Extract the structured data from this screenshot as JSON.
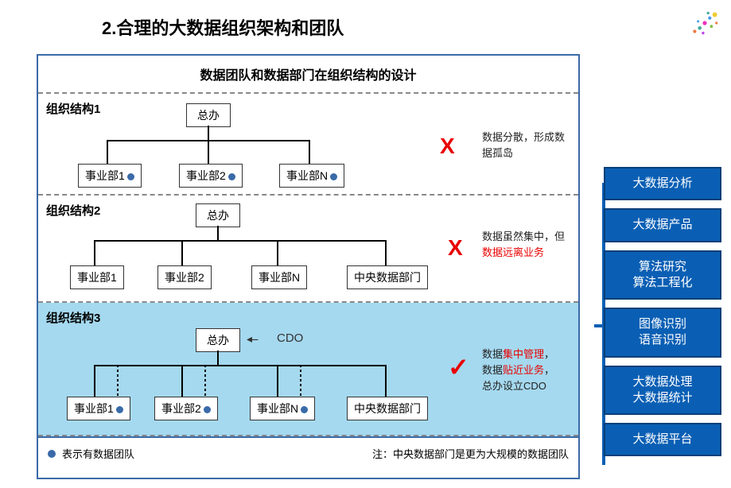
{
  "title": "2.合理的大数据组织架构和团队",
  "panel_title": "数据团队和数据部门在组织结构的设计",
  "colors": {
    "frame": "#3a6aa8",
    "dot": "#3a6aa8",
    "x": "#e80000",
    "check": "#e80000",
    "highlight": "#e80000",
    "side_bg": "#0a5fb4",
    "side_border": "#083f78",
    "sec3_bg": "#a5d9ef"
  },
  "sections": [
    {
      "label": "组织结构1",
      "tree": {
        "root": "总办",
        "children": [
          {
            "label": "事业部1",
            "has_dot": true
          },
          {
            "label": "事业部2",
            "has_dot": true
          },
          {
            "label": "事业部N",
            "has_dot": true
          }
        ]
      },
      "mark": "X",
      "desc_plain": "数据分散，形成数据孤岛"
    },
    {
      "label": "组织结构2",
      "tree": {
        "root": "总办",
        "children": [
          {
            "label": "事业部1",
            "has_dot": false
          },
          {
            "label": "事业部2",
            "has_dot": false
          },
          {
            "label": "事业部N",
            "has_dot": false
          },
          {
            "label": "中央数据部门",
            "has_dot": false
          }
        ]
      },
      "mark": "X",
      "desc_pre": "数据虽然集中，但",
      "desc_hl": "数据远离业务"
    },
    {
      "label": "组织结构3",
      "tree": {
        "root": "总办",
        "cdo": "CDO",
        "children": [
          {
            "label": "事业部1",
            "has_dot": true
          },
          {
            "label": "事业部2",
            "has_dot": true
          },
          {
            "label": "事业部N",
            "has_dot": true
          },
          {
            "label": "中央数据部门",
            "has_dot": false
          }
        ]
      },
      "mark": "✓",
      "desc3_a1": "数据",
      "desc3_a2": "集中管理",
      "desc3_b1": "数据",
      "desc3_b2": "贴近业务",
      "desc3_c": "总办设立CDO"
    }
  ],
  "legend": {
    "dot_text": "表示有数据团队",
    "note": "注：中央数据部门是更为大规模的数据团队"
  },
  "side_items": [
    "大数据分析",
    "大数据产品",
    "算法研究\n算法工程化",
    "图像识别\n语音识别",
    "大数据处理\n大数据统计",
    "大数据平台"
  ]
}
